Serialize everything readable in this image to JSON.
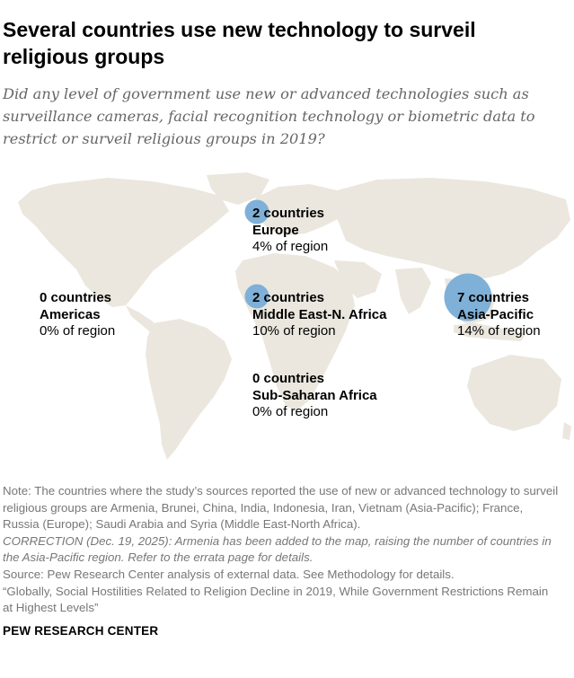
{
  "title": "Several countries use new technology to surveil religious groups",
  "subtitle": "Did any level of government use new or advanced technologies such as surveillance cameras, facial recognition technology or biometric data to restrict or surveil religious groups in 2019?",
  "colors": {
    "bubble": "#7fb0d7",
    "land": "#ebe7de",
    "text_gray": "#777777"
  },
  "chart_data": {
    "type": "bubble-map",
    "regions": [
      {
        "count_label": "0 countries",
        "region": "Americas",
        "pct_label": "0% of region",
        "count": 0,
        "pct": 0
      },
      {
        "count_label": "2 countries",
        "region": "Europe",
        "pct_label": "4% of region",
        "count": 2,
        "pct": 4
      },
      {
        "count_label": "2 countries",
        "region": "Middle East-N. Africa",
        "pct_label": "10% of region",
        "count": 2,
        "pct": 10
      },
      {
        "count_label": "0 countries",
        "region": "Sub-Saharan Africa",
        "pct_label": "0% of region",
        "count": 0,
        "pct": 0
      },
      {
        "count_label": "7 countries",
        "region": "Asia-Pacific",
        "pct_label": "14% of region",
        "count": 7,
        "pct": 14
      }
    ]
  },
  "note": {
    "text": "Note: The countries where the study’s sources reported the use of new or advanced technology to surveil religious groups are Armenia, Brunei, China, India, Indonesia, Iran, Vietnam (Asia-Pacific); France, Russia (Europe); Saudi Arabia and Syria (Middle East-North Africa).",
    "correction": "CORRECTION (Dec. 19, 2025): Armenia has been added to the map, raising the number of countries in the Asia-Pacific region. Refer to the errata page for details.",
    "source": "Source: Pew Research Center analysis of external data. See Methodology for details.",
    "report": "“Globally, Social Hostilities Related to Religion Decline in 2019, While Government Restrictions Remain at Highest Levels”"
  },
  "brand": "PEW RESEARCH CENTER"
}
